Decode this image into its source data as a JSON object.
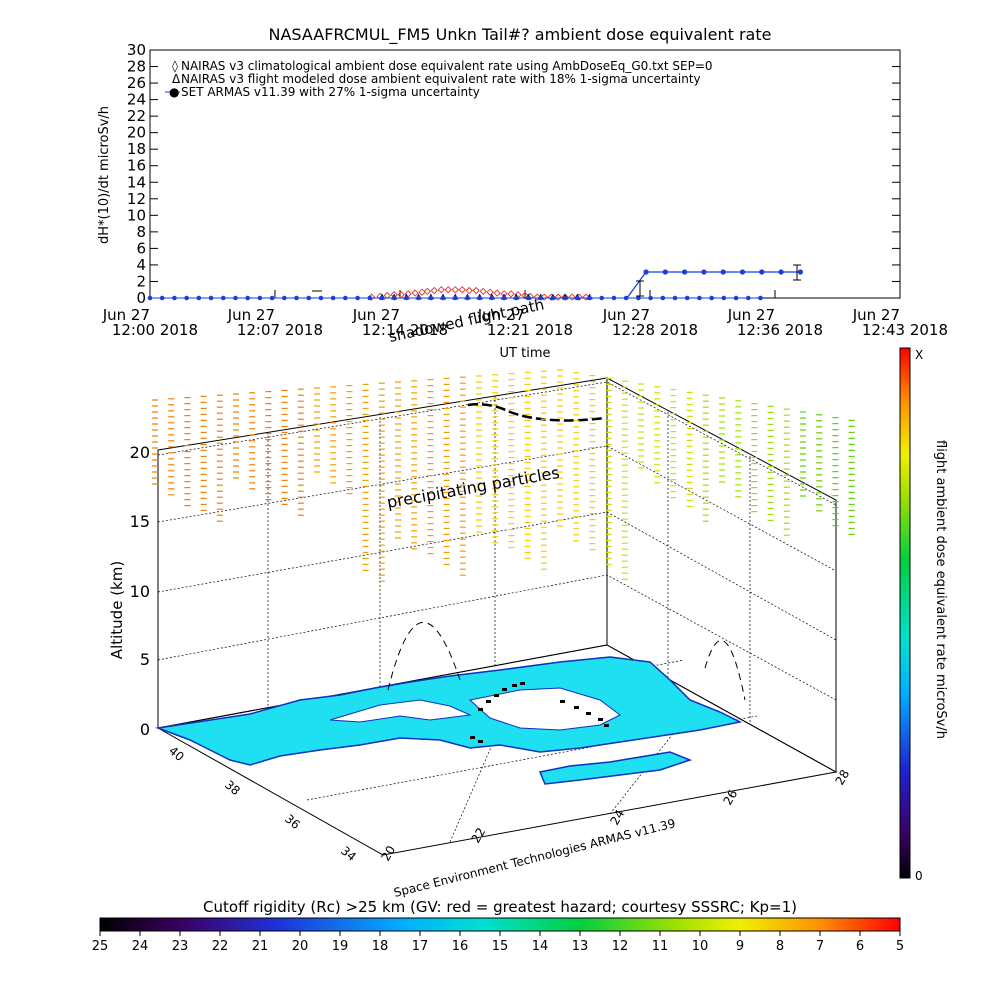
{
  "title": "NASAAFRCMUL_FM5 Unkn Tail#? ambient dose equivalent rate",
  "chart_data": [
    {
      "type": "line",
      "ylabel": "dH*(10)/dt microSv/h",
      "xlabel": "UT time",
      "ylim": [
        0,
        30
      ],
      "yticks": [
        "0",
        "2",
        "4",
        "6",
        "8",
        "10",
        "12",
        "14",
        "16",
        "18",
        "20",
        "22",
        "24",
        "26",
        "28",
        "30"
      ],
      "xticks": [
        {
          "date": "Jun 27",
          "time": "12:00 2018"
        },
        {
          "date": "Jun 27",
          "time": "12:07 2018"
        },
        {
          "date": "Jun 27",
          "time": "12:14 2018"
        },
        {
          "date": "Jun 27",
          "time": "12:21 2018"
        },
        {
          "date": "Jun 27",
          "time": "12:28 2018"
        },
        {
          "date": "Jun 27",
          "time": "12:36 2018"
        },
        {
          "date": "Jun 27",
          "time": "12:43 2018"
        }
      ],
      "legend": [
        {
          "symbol": "◊",
          "color": "#e03030",
          "label": "NAIRAS v3 climatological ambient dose equivalent rate using AmbDoseEq_G0.txt SEP=0"
        },
        {
          "symbol": "Δ",
          "color": "#000000",
          "label": "NAIRAS v3 flight modeled dose ambient equivalent rate with 18% 1-sigma uncertainty"
        },
        {
          "symbol": "●",
          "color": "#1a3fd8",
          "label": "SET ARMAS v11.39 with 27% 1-sigma uncertainty"
        }
      ],
      "legend_position": "top-left",
      "series": [
        {
          "name": "NAIRAS v3 climatological ambient dose equivalent rate using AmbDoseEq_G0.txt SEP=0",
          "x": [
            12.7,
            13.2,
            13.6,
            14.0,
            14.4,
            14.8,
            15.2,
            15.6,
            15.9,
            16.3,
            16.7,
            17.1,
            17.5,
            17.9,
            18.3,
            18.7,
            19.1,
            19.5,
            19.9,
            20.3,
            20.7,
            21.1,
            21.5,
            21.8,
            22.2,
            22.6,
            23.0,
            23.4,
            23.8,
            24.2,
            24.6,
            25.0
          ],
          "y": [
            0.1,
            0.2,
            0.3,
            0.4,
            0.4,
            0.5,
            0.6,
            0.7,
            0.8,
            0.9,
            1.0,
            1.0,
            1.0,
            1.0,
            0.9,
            0.9,
            0.8,
            0.7,
            0.6,
            0.5,
            0.5,
            0.4,
            0.3,
            0.2,
            0.1,
            0.1,
            0.1,
            0.1,
            0.1,
            0.1,
            0.1,
            0.1
          ]
        },
        {
          "name": "NAIRAS v3 flight modeled dose ambient equivalent rate with 18% 1-sigma uncertainty",
          "x": [
            13.3,
            14.0,
            14.7,
            15.4,
            16.1,
            16.8,
            17.5,
            18.2,
            18.9,
            19.6,
            20.3,
            21.0,
            21.7,
            22.4,
            23.1,
            23.8,
            24.5,
            25.2
          ],
          "y": [
            0,
            0,
            0,
            0,
            0,
            0,
            0,
            0,
            0,
            0,
            0,
            0,
            0,
            0,
            0,
            0,
            0,
            0
          ]
        },
        {
          "name": "SET ARMAS v11.39 with 27% 1-sigma uncertainty",
          "x": [
            0.0,
            0.7,
            1.4,
            2.1,
            2.8,
            3.5,
            4.2,
            4.9,
            5.6,
            6.3,
            7.0,
            7.7,
            8.4,
            9.1,
            9.8,
            10.5,
            11.2,
            11.9,
            12.6,
            13.3,
            14.0,
            14.7,
            15.4,
            16.1,
            16.8,
            17.5,
            18.2,
            18.9,
            19.6,
            20.3,
            21.0,
            21.7,
            22.4,
            23.1,
            23.8,
            24.5,
            25.2,
            25.9,
            26.6,
            27.3,
            28.0,
            28.7,
            29.4,
            30.1,
            30.8,
            31.5,
            32.2,
            32.9,
            33.6,
            34.3,
            35.0
          ],
          "y": [
            0,
            0,
            0,
            0,
            0,
            0,
            0,
            0,
            0,
            0,
            0,
            0,
            0,
            0,
            0,
            0,
            0,
            0,
            0,
            0,
            0,
            0,
            0,
            0,
            0,
            0,
            0,
            0,
            0,
            0,
            0,
            0,
            0,
            0,
            0,
            0,
            0,
            0,
            0,
            0,
            0,
            0,
            0,
            0,
            0,
            0,
            0,
            0,
            0,
            0,
            0
          ]
        }
      ]
    },
    {
      "type": "scatter",
      "ylabel": "Altitude (km)",
      "zticks": [
        "0",
        "5",
        "10",
        "15",
        "20"
      ],
      "lat_ticks": [
        "40",
        "38",
        "36",
        "34"
      ],
      "lon_ticks": [
        "20",
        "22",
        "24",
        "26",
        "28"
      ],
      "annotations": [
        "shadowed flight path",
        "precipitating particles"
      ],
      "credit": "Space Environment Technologies ARMAS v11.39",
      "colorbar_label": "flight ambient dose equivalent rate microSv/h",
      "colorbar_top": "X",
      "colorbar_bottom": "0"
    },
    {
      "type": "heatmap",
      "title": "Cutoff rigidity (Rc) >25 km (GV: red = greatest hazard; courtesy SSSRC; Kp=1)",
      "ticks": [
        "25",
        "24",
        "23",
        "22",
        "21",
        "20",
        "19",
        "18",
        "17",
        "16",
        "15",
        "14",
        "13",
        "12",
        "11",
        "10",
        "9",
        "8",
        "7",
        "6",
        "5"
      ]
    }
  ],
  "colors": {
    "climatological": "#e03030",
    "armas": "#1a3fd8",
    "land": "#1ee0f0",
    "coast": "#1030c0"
  }
}
